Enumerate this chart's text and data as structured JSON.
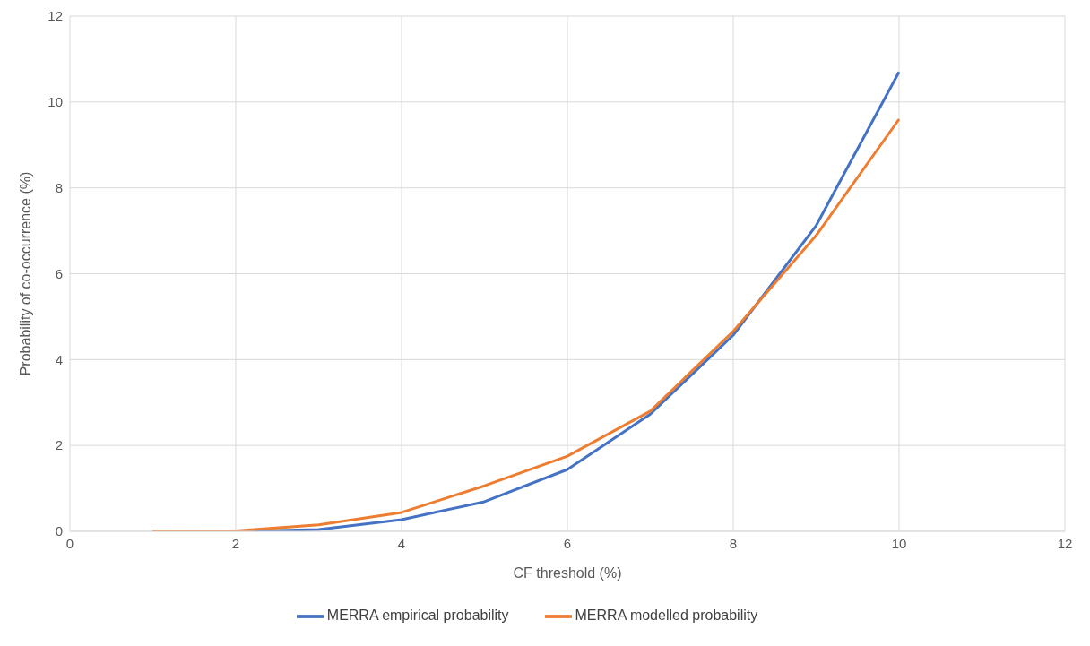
{
  "chart_data": {
    "type": "line",
    "xlabel": "CF threshold (%)",
    "ylabel": "Probability of co-occurrence  (%)",
    "x": [
      1,
      2,
      3,
      4,
      5,
      6,
      7,
      8,
      9,
      10
    ],
    "series": [
      {
        "name": "MERRA empirical probability",
        "color": "#4472c4",
        "values": [
          0,
          0,
          0.04,
          0.27,
          0.69,
          1.44,
          2.73,
          4.57,
          7.12,
          10.7
        ]
      },
      {
        "name": "MERRA modelled probability",
        "color": "#ed7d31",
        "values": [
          0,
          0.01,
          0.15,
          0.44,
          1.06,
          1.75,
          2.8,
          4.66,
          6.89,
          9.6
        ]
      }
    ],
    "xlim": [
      0,
      12
    ],
    "xticks": [
      0,
      2,
      4,
      6,
      8,
      10,
      12
    ],
    "ylim": [
      0,
      12
    ],
    "yticks": [
      0,
      2,
      4,
      6,
      8,
      10,
      12
    ],
    "grid": true,
    "legend": "bottom",
    "marker": "none",
    "line_style": "solid"
  }
}
